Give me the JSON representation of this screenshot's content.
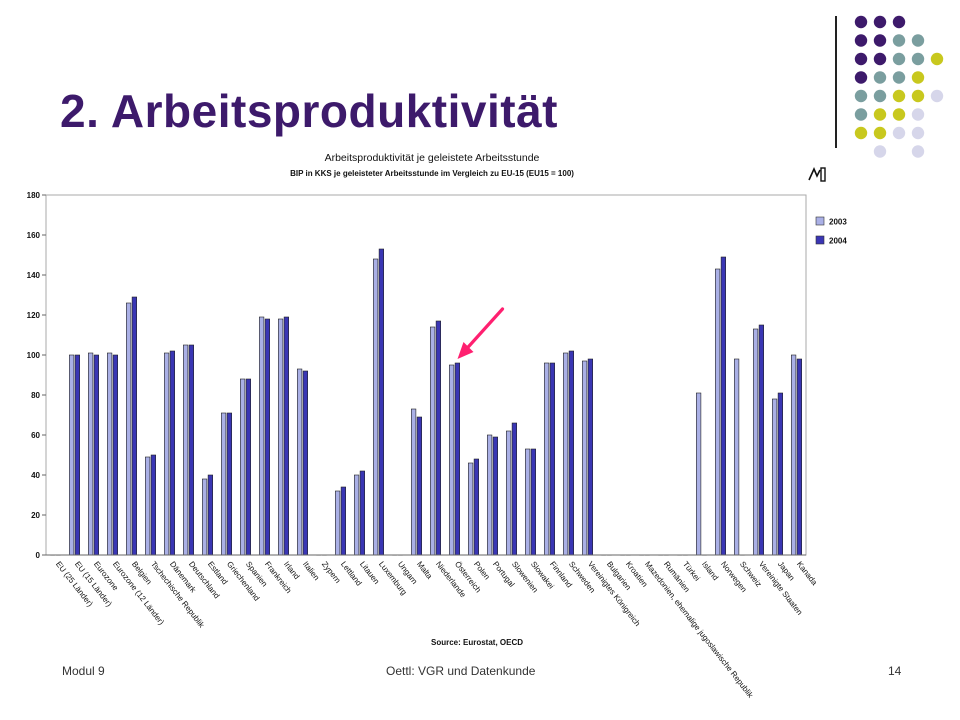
{
  "slide": {
    "title": "2. Arbeitsproduktivität",
    "footer_left": "Modul 9",
    "footer_center": "Oettl: VGR und Datenkunde",
    "footer_right": "14",
    "dot_colors": [
      "#3d1a6b",
      "#7a9e9f",
      "#c8c81e",
      "#d6d6ea"
    ]
  },
  "chart_data": {
    "type": "bar",
    "title": "Arbeitsproduktivität je geleistete Arbeitsstunde",
    "subtitle": "BIP in KKS je geleisteter Arbeitsstunde im Vergleich zu EU-15 (EU15 = 100)",
    "source": "Source: Eurostat, OECD",
    "ylim": [
      0,
      180
    ],
    "yticks": [
      0,
      20,
      40,
      60,
      80,
      100,
      120,
      140,
      160,
      180
    ],
    "grid": false,
    "legend_position": "right",
    "categories": [
      "EU (25 Länder)",
      "EU (15 Länder)",
      "Eurozone",
      "Eurozone (12 Länder)",
      "Belgien",
      "Tschechische Republik",
      "Dänemark",
      "Deutschland",
      "Estland",
      "Griechenland",
      "Spanien",
      "Frankreich",
      "Irland",
      "Italien",
      "Zypern",
      "Lettland",
      "Litauen",
      "Luxemburg",
      "Ungarn",
      "Malta",
      "Niederlande",
      "Österreich",
      "Polen",
      "Portugal",
      "Slowenien",
      "Slowakei",
      "Finnland",
      "Schweden",
      "Vereinigtes Königreich",
      "Bulgarien",
      "Kroatien",
      "Mazedonien, ehemalige jugoslawische Republik",
      "Rumänien",
      "Türkei",
      "Island",
      "Norwegen",
      "Schweiz",
      "Vereinigte Staaten",
      "Japan",
      "Kanada"
    ],
    "series": [
      {
        "name": "2003",
        "color": "#aab0e6",
        "values": [
          0,
          100,
          101,
          101,
          126,
          49,
          101,
          105,
          38,
          71,
          88,
          119,
          118,
          93,
          0,
          32,
          40,
          148,
          0,
          73,
          114,
          95,
          46,
          60,
          62,
          53,
          96,
          101,
          97,
          0,
          0,
          0,
          0,
          0,
          81,
          143,
          98,
          113,
          78,
          100
        ]
      },
      {
        "name": "2004",
        "color": "#3a36b4",
        "values": [
          0,
          100,
          100,
          100,
          129,
          50,
          102,
          105,
          40,
          71,
          88,
          118,
          119,
          92,
          0,
          34,
          42,
          153,
          0,
          69,
          117,
          96,
          48,
          59,
          66,
          53,
          96,
          102,
          98,
          0,
          0,
          0,
          0,
          0,
          0,
          149,
          0,
          115,
          81,
          98
        ]
      }
    ],
    "annotation": "arrow pointing to Österreich",
    "annotation_color": "#ff2070"
  }
}
